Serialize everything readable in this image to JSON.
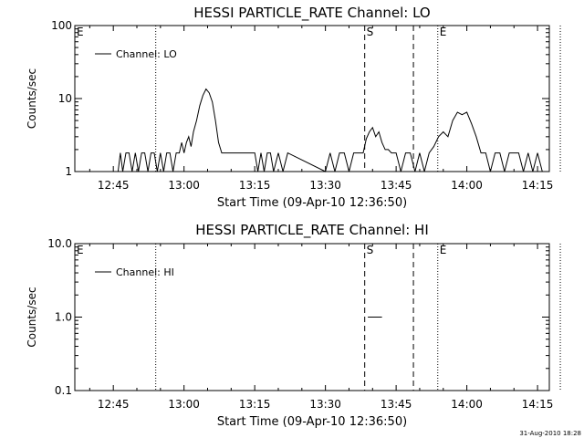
{
  "footer": "31-Aug-2010 18:28",
  "chart_data": [
    {
      "type": "line",
      "title": "HESSI PARTICLE_RATE Channel: LO",
      "xlabel": "Start Time (09-Apr-10 12:36:50)",
      "ylabel": "Counts/sec",
      "yscale": "log",
      "ylim": [
        1,
        100
      ],
      "xlim": [
        "12:36:50",
        "14:17:30"
      ],
      "x_ticks": [
        "12:45",
        "13:00",
        "13:15",
        "13:30",
        "13:45",
        "14:00",
        "14:15"
      ],
      "y_ticks": [
        "1",
        "10",
        "100"
      ],
      "legend": "Channel: LO",
      "legend_position": "top-left",
      "markers": [
        {
          "label": "E",
          "time": "12:36:50",
          "style": "dotted"
        },
        {
          "label": "",
          "time": "12:54:00",
          "style": "dotted"
        },
        {
          "label": "S",
          "time": "13:38:20",
          "style": "dashed"
        },
        {
          "label": "",
          "time": "13:48:40",
          "style": "dashed"
        },
        {
          "label": "E",
          "time": "13:53:50",
          "style": "dotted"
        },
        {
          "label": "",
          "time": "14:19:50",
          "style": "dotted"
        }
      ],
      "series": [
        {
          "x": [
            "12:36:50",
            "12:46:00",
            "12:46:30",
            "12:47:00",
            "12:47:40",
            "12:48:20",
            "12:49:00",
            "12:49:40",
            "12:50:20",
            "12:51:00",
            "12:51:40",
            "12:52:20",
            "12:53:00",
            "12:53:40",
            "12:54:20",
            "12:55:00",
            "12:55:40",
            "12:56:20",
            "12:57:00",
            "12:57:40",
            "12:58:20",
            "12:59:00",
            "12:59:30",
            "13:00:00",
            "13:00:30",
            "13:01:00",
            "13:01:30",
            "13:02:00",
            "13:02:40",
            "13:03:20",
            "13:04:00",
            "13:04:40",
            "13:05:20",
            "13:06:00",
            "13:06:40",
            "13:07:20",
            "13:08:00",
            "13:08:40",
            "13:09:20",
            "13:10:00",
            "13:15:00",
            "13:15:40",
            "13:16:20",
            "13:17:00",
            "13:17:40",
            "13:18:20",
            "13:19:00",
            "13:20:00",
            "13:21:00",
            "13:22:00",
            "13:30:00",
            "13:31:00",
            "13:32:00",
            "13:33:00",
            "13:34:00",
            "13:35:00",
            "13:36:00",
            "13:37:00",
            "13:38:00",
            "13:38:40",
            "13:39:20",
            "13:40:00",
            "13:40:40",
            "13:41:20",
            "13:42:00",
            "13:42:40",
            "13:43:20",
            "13:44:00",
            "13:45:00",
            "13:46:00",
            "13:47:00",
            "13:48:00",
            "13:49:00",
            "13:50:00",
            "13:51:00",
            "13:52:00",
            "13:53:00",
            "13:54:00",
            "13:55:00",
            "13:56:00",
            "13:57:00",
            "13:58:00",
            "13:59:00",
            "14:00:00",
            "14:01:00",
            "14:02:00",
            "14:03:00",
            "14:04:00",
            "14:05:00",
            "14:06:00",
            "14:07:00",
            "14:08:00",
            "14:09:00",
            "14:10:00",
            "14:11:00",
            "14:12:00",
            "14:13:00",
            "14:14:00",
            "14:15:00",
            "14:16:00"
          ],
          "y": [
            1,
            1,
            1.8,
            1,
            1.8,
            1.8,
            1,
            1.8,
            1,
            1.8,
            1.8,
            1,
            1.8,
            1.8,
            1,
            1.8,
            1,
            1.8,
            1.8,
            1,
            1.8,
            1.8,
            2.5,
            1.8,
            2.5,
            3,
            2.2,
            3.5,
            5,
            8,
            11,
            13.5,
            12,
            9,
            5,
            2.5,
            1.8,
            1.8,
            1.8,
            1.8,
            1.8,
            1,
            1.8,
            1,
            1.8,
            1.8,
            1,
            1.8,
            1,
            1.8,
            1,
            1.8,
            1,
            1.8,
            1.8,
            1,
            1.8,
            1.8,
            1.8,
            2.8,
            3.5,
            4,
            3,
            3.5,
            2.5,
            2,
            2,
            1.8,
            1.8,
            1,
            1.8,
            1.8,
            1,
            1.8,
            1,
            1.8,
            2.2,
            3,
            3.5,
            3,
            5,
            6.5,
            6,
            6.5,
            4.5,
            3,
            1.8,
            1.8,
            1,
            1.8,
            1.8,
            1,
            1.8,
            1.8,
            1.8,
            1,
            1.8,
            1,
            1.8,
            1
          ]
        }
      ]
    },
    {
      "type": "line",
      "title": "HESSI PARTICLE_RATE Channel: HI",
      "xlabel": "Start Time (09-Apr-10 12:36:50)",
      "ylabel": "Counts/sec",
      "yscale": "log",
      "ylim": [
        0.1,
        10
      ],
      "xlim": [
        "12:36:50",
        "14:17:30"
      ],
      "x_ticks": [
        "12:45",
        "13:00",
        "13:15",
        "13:30",
        "13:45",
        "14:00",
        "14:15"
      ],
      "y_ticks": [
        "0.1",
        "1.0",
        "10.0"
      ],
      "legend": "Channel: HI",
      "legend_position": "top-left",
      "markers": [
        {
          "label": "E",
          "time": "12:36:50",
          "style": "dotted"
        },
        {
          "label": "",
          "time": "12:54:00",
          "style": "dotted"
        },
        {
          "label": "S",
          "time": "13:38:20",
          "style": "dashed"
        },
        {
          "label": "",
          "time": "13:48:40",
          "style": "dashed"
        },
        {
          "label": "E",
          "time": "13:53:50",
          "style": "dotted"
        },
        {
          "label": "",
          "time": "14:19:50",
          "style": "dotted"
        }
      ],
      "series": [
        {
          "x": [
            "13:39:00",
            "13:42:00"
          ],
          "y": [
            1,
            1
          ]
        }
      ]
    }
  ]
}
